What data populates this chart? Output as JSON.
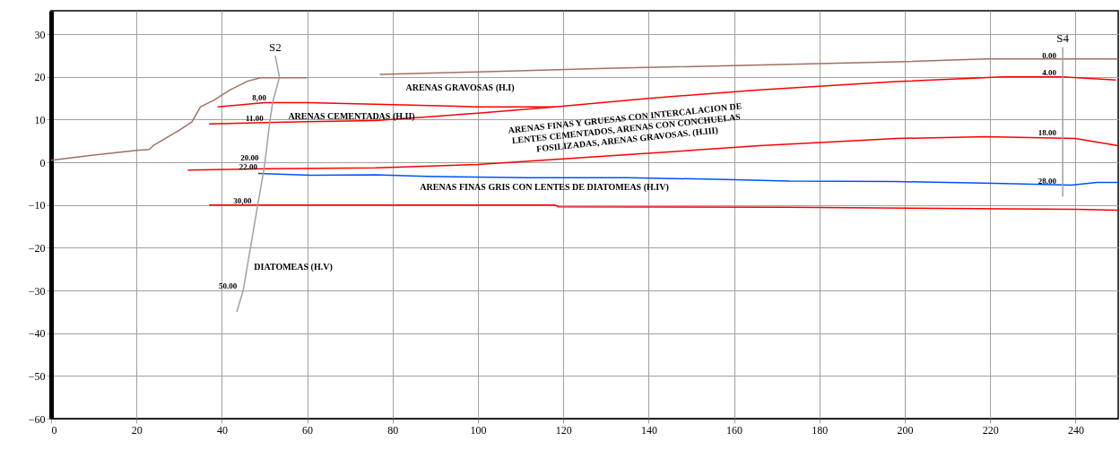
{
  "chart_data": {
    "type": "line",
    "xlim": [
      0,
      250
    ],
    "ylim": [
      -60,
      35.5
    ],
    "xticks": [
      0,
      20,
      40,
      60,
      80,
      100,
      120,
      140,
      160,
      180,
      200,
      220,
      240
    ],
    "yticks": [
      -60,
      -50,
      -40,
      -30,
      -20,
      -10,
      0,
      10,
      20,
      30
    ],
    "grid": true,
    "marker": "none",
    "line_style": "solid",
    "series": [
      {
        "color": "#a07060",
        "x": [
          0,
          10,
          20,
          23,
          24,
          30,
          33,
          35,
          38,
          42,
          46,
          49,
          60,
          68,
          77,
          100,
          130,
          166,
          200,
          219,
          250
        ],
        "values": [
          0.5,
          1.7,
          2.8,
          3,
          4,
          7.5,
          9.5,
          13,
          14.5,
          17,
          19,
          19.8,
          19.8,
          null,
          20.6,
          21.2,
          22,
          22.8,
          23.6,
          24.2,
          24.2
        ]
      },
      {
        "color": "#ff0000",
        "x": [
          39,
          50,
          60,
          80,
          100,
          118,
          140,
          166,
          198,
          223,
          237,
          249.5
        ],
        "values": [
          13,
          14,
          14,
          13.5,
          13,
          13,
          15,
          17,
          18.9,
          20,
          20,
          19.3
        ]
      },
      {
        "color": "#ff0000",
        "x": [
          37,
          50,
          60,
          76,
          100,
          118
        ],
        "values": [
          9,
          9.3,
          9.5,
          9.8,
          11.5,
          13
        ]
      },
      {
        "color": "#ff0000",
        "x": [
          32,
          50,
          76,
          100,
          135,
          166,
          198,
          219,
          240,
          250
        ],
        "values": [
          -1.8,
          -1.5,
          -1.3,
          -0.5,
          1.8,
          3.9,
          5.6,
          6,
          5.6,
          3.9
        ]
      },
      {
        "color": "#0050ff",
        "x": [
          48.5,
          61,
          76,
          88,
          112,
          135,
          158,
          173,
          198,
          221,
          239,
          245,
          250
        ],
        "values": [
          -2.6,
          -3,
          -2.9,
          -3.3,
          -3.6,
          -3.6,
          -4,
          -4.4,
          -4.5,
          -4.9,
          -5.3,
          -4.7,
          -4.7
        ]
      },
      {
        "color": "#ff0000",
        "x": [
          37,
          118,
          119,
          173,
          240,
          250
        ],
        "values": [
          -10,
          -10,
          -10.4,
          -10.5,
          -11,
          -11.2
        ]
      },
      {
        "name": "S2",
        "color": "#a0a0a0",
        "x": [
          52.5,
          53.5,
          51.9,
          51.2,
          50.1,
          49.8,
          48.4,
          45,
          43.5
        ],
        "values": [
          25,
          20,
          14,
          9.3,
          0,
          -2,
          -10,
          -30,
          -35
        ]
      },
      {
        "name": "S4",
        "color": "#a0a0a0",
        "x": [
          237,
          237,
          237,
          237,
          237,
          237
        ],
        "values": [
          27,
          24,
          20,
          6,
          -5.5,
          -8
        ]
      }
    ],
    "annotations": [
      "ARENAS GRAVOSAS (H.I)",
      "ARENAS CEMENTADAS (H.II)",
      "ARENAS FINAS Y GRUESAS CON INTERCALACION DE\nLENTES CEMENTADOS, ARENAS CON CONCHUELAS\nFOSILIZADAS, ARENAS GRAVOSAS. (H.III)",
      "ARENAS FINAS GRIS CON LENTES DE DIATOMEAS (H.IV)",
      "DIATOMEAS (H.V)",
      {
        "text": "8,00",
        "x": 51.9,
        "y": 14
      },
      {
        "text": "11.00",
        "x": 51.2,
        "y": 9.3
      },
      {
        "text": "20.00",
        "x": 50.1,
        "y": 0
      },
      {
        "text": "22.00",
        "x": 49.8,
        "y": -2
      },
      {
        "text": "30,00",
        "x": 48.4,
        "y": -10
      },
      {
        "text": "50.00",
        "x": 45,
        "y": -30
      },
      {
        "text": "0.00",
        "x": 237,
        "y": 24
      },
      {
        "text": "4.00",
        "x": 237,
        "y": 20
      },
      {
        "text": "18.00",
        "x": 237,
        "y": 6
      },
      {
        "text": "28.00",
        "x": 237,
        "y": -5.5
      }
    ]
  }
}
